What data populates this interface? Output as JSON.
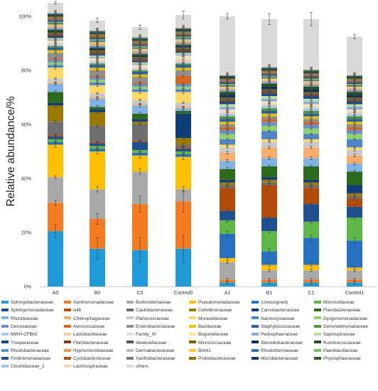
{
  "chart_data": {
    "type": "bar",
    "stacked": true,
    "ylabel": "Relative abundance/%",
    "ylim": [
      0,
      100
    ],
    "y_ticks": [
      "0%",
      "20%",
      "40%",
      "60%",
      "80%",
      "100%"
    ],
    "grid": false,
    "legend_position": "bottom",
    "categories": [
      "A0",
      "B0",
      "C0",
      "Control0",
      "A1",
      "B1",
      "C1",
      "Control1"
    ],
    "series": [
      {
        "name": "Sphingobacteriaceae",
        "color": "#1f9bd9",
        "values": [
          20.5,
          14,
          13.5,
          14,
          1.5,
          1.5,
          1.5,
          1.5
        ],
        "errors": [
          2.5,
          4,
          4.5,
          5,
          0.5,
          0.5,
          0.5,
          0.5
        ]
      },
      {
        "name": "Xanthomonadaceae",
        "color": "#f47b20",
        "values": [
          10.5,
          11,
          17,
          17.5,
          1,
          1,
          1,
          1
        ],
        "errors": [
          1,
          2,
          3,
          4,
          0.5,
          0.5,
          0.5,
          0.5
        ]
      },
      {
        "name": "Burkholderiaceae",
        "color": "#a9a9a9",
        "values": [
          9.5,
          11,
          12,
          4.5,
          6.5,
          3.5,
          3.5,
          3.5
        ],
        "errors": [
          0.5,
          1,
          1,
          1,
          0.5,
          0.5,
          0.5,
          0.5
        ]
      },
      {
        "name": "Pseudomonadaceae",
        "color": "#ffc000",
        "values": [
          12,
          14,
          6,
          12,
          1.5,
          2,
          2,
          1
        ],
        "errors": [
          1,
          1,
          1,
          1,
          0.5,
          0.5,
          0.5,
          0.5
        ]
      },
      {
        "name": "(Unassigned)",
        "color": "#2672c1",
        "values": [
          1,
          1,
          1,
          1,
          9,
          5,
          10,
          10
        ],
        "errors": [
          0.5,
          0.5,
          0.5,
          0.5,
          1,
          1,
          1,
          1
        ]
      },
      {
        "name": "Microscillaceae",
        "color": "#5eb847",
        "values": [
          1,
          1,
          1,
          1,
          5,
          7.5,
          6,
          8.5
        ],
        "errors": [
          0.5,
          0.5,
          0.5,
          0.5,
          0.5,
          0.5,
          0.5,
          0.5
        ]
      },
      {
        "name": "Sphingomonadaceae",
        "color": "#1d4f91",
        "values": [
          1,
          1,
          3,
          1,
          3.5,
          5,
          6.5,
          4
        ],
        "errors": [
          0.5,
          0.5,
          0.5,
          0.5,
          0.5,
          0.5,
          0.5,
          0.5
        ]
      },
      {
        "name": "A4b",
        "color": "#b24a08",
        "values": [
          0.5,
          0.5,
          0.5,
          0.5,
          8.5,
          12,
          6,
          3
        ],
        "errors": [
          0.3,
          0.3,
          0.3,
          0.3,
          0.5,
          0.5,
          0.5,
          0.5
        ]
      },
      {
        "name": "Caulobacteraceae",
        "color": "#6f6f6f",
        "values": [
          5,
          6,
          6,
          1,
          1,
          1,
          1,
          1
        ],
        "errors": [
          0.5,
          0.5,
          0.5,
          0.5,
          0.3,
          0.3,
          0.3,
          0.3
        ]
      },
      {
        "name": "Cellvibrionaceae",
        "color": "#9a7a00",
        "values": [
          6,
          5,
          1,
          2.5,
          1,
          1,
          1,
          1
        ],
        "errors": [
          0.5,
          0.5,
          0.5,
          0.5,
          0.3,
          0.3,
          0.3,
          0.3
        ]
      },
      {
        "name": "Carnobacteriaceae",
        "color": "#0e3e7a",
        "values": [
          1,
          1,
          1,
          9,
          1,
          1,
          1,
          3
        ],
        "errors": [
          0.5,
          0.5,
          0.5,
          0.5,
          0.3,
          0.3,
          0.3,
          0.3
        ]
      },
      {
        "name": "Flavobacteriaceae",
        "color": "#2d6b1c",
        "values": [
          4,
          1,
          2,
          1,
          4,
          4,
          5,
          5
        ],
        "errors": [
          0.5,
          0.5,
          0.5,
          0.5,
          0.5,
          0.5,
          0.5,
          0.5
        ]
      },
      {
        "name": "Rhizobiaceae",
        "color": "#7fb2e5",
        "values": [
          3,
          3,
          3,
          1,
          3,
          3,
          3,
          3
        ],
        "errors": [
          0.5,
          0.5,
          0.5,
          0.5,
          0.5,
          0.5,
          0.5,
          0.5
        ]
      },
      {
        "name": "Chitinophagaceae",
        "color": "#f8ae6b",
        "values": [
          0.5,
          0.5,
          0.5,
          0.5,
          3,
          4,
          4,
          3
        ],
        "errors": [
          0.3,
          0.3,
          0.3,
          0.3,
          0.5,
          0.5,
          0.5,
          0.5
        ]
      },
      {
        "name": "Planococcaceae",
        "color": "#c9c9c9",
        "values": [
          1.5,
          1.5,
          1.5,
          1.5,
          2,
          2,
          2,
          2
        ],
        "errors": [
          0.3,
          0.3,
          0.3,
          0.3,
          0.3,
          0.3,
          0.3,
          0.3
        ]
      },
      {
        "name": "Moraxellaceae",
        "color": "#ffd965",
        "values": [
          4,
          3,
          3,
          4,
          1,
          1,
          1,
          1
        ],
        "errors": [
          0.5,
          0.5,
          0.5,
          0.5,
          0.3,
          0.3,
          0.3,
          0.3
        ]
      },
      {
        "name": "Nannocystaceae",
        "color": "#4f86c9",
        "values": [
          1,
          1,
          1,
          1,
          2,
          3,
          2,
          3
        ],
        "errors": [
          0.3,
          0.3,
          0.3,
          0.3,
          0.3,
          0.3,
          0.3,
          0.3
        ]
      },
      {
        "name": "Dysgonomonadaceae",
        "color": "#8fd06f",
        "values": [
          1,
          1,
          1,
          1,
          2,
          2,
          2,
          2
        ],
        "errors": [
          0.3,
          0.3,
          0.3,
          0.3,
          0.3,
          0.3,
          0.3,
          0.3
        ]
      },
      {
        "name": "Devosiaceae",
        "color": "#6c8fc4",
        "values": [
          1,
          1,
          1,
          1,
          1.5,
          1.5,
          1.5,
          1.5
        ],
        "errors": [
          0.3,
          0.3,
          0.3,
          0.3,
          0.3,
          0.3,
          0.3,
          0.3
        ]
      },
      {
        "name": "Aerococcaceae",
        "color": "#d9661f",
        "values": [
          0.5,
          0.5,
          0.5,
          3,
          1,
          1,
          1,
          1
        ],
        "errors": [
          0.3,
          0.3,
          0.3,
          0.3,
          0.3,
          0.3,
          0.3,
          0.3
        ]
      },
      {
        "name": "Enterobacteriaceae",
        "color": "#8f8f8f",
        "values": [
          2,
          2,
          2,
          2,
          1,
          1,
          1,
          1
        ],
        "errors": [
          0.3,
          0.3,
          0.3,
          0.3,
          0.3,
          0.3,
          0.3,
          0.3
        ]
      },
      {
        "name": "Bacillaceae",
        "color": "#e6c300",
        "values": [
          1,
          1,
          1,
          1,
          1,
          1,
          1,
          1
        ],
        "errors": [
          0.3,
          0.3,
          0.3,
          0.3,
          0.3,
          0.3,
          0.3,
          0.3
        ]
      },
      {
        "name": "Staphylococcaceae",
        "color": "#2b5fa8",
        "values": [
          1,
          1,
          1,
          1,
          1,
          1,
          1,
          1
        ],
        "errors": [
          0.3,
          0.3,
          0.3,
          0.3,
          0.3,
          0.3,
          0.3,
          0.3
        ]
      },
      {
        "name": "Gemmatimonadaceae",
        "color": "#4a9a3a",
        "values": [
          0.5,
          0.5,
          0.5,
          0.5,
          1,
          1,
          1,
          1
        ],
        "errors": [
          0.2,
          0.2,
          0.2,
          0.2,
          0.3,
          0.3,
          0.3,
          0.3
        ]
      },
      {
        "name": "MWH-CFBk5",
        "color": "#a9c8ec",
        "values": [
          0.5,
          0.5,
          0.5,
          0.5,
          1,
          1,
          1,
          1
        ],
        "errors": [
          0.2,
          0.2,
          0.2,
          0.2,
          0.3,
          0.3,
          0.3,
          0.3
        ]
      },
      {
        "name": "Lactobacillaceae",
        "color": "#f9c9a2",
        "values": [
          0.5,
          0.5,
          0.5,
          1,
          0.5,
          0.5,
          0.5,
          0.5
        ],
        "errors": [
          0.2,
          0.2,
          0.2,
          0.2,
          0.2,
          0.2,
          0.2,
          0.2
        ]
      },
      {
        "name": "Family_XI",
        "color": "#dedede",
        "values": [
          0.5,
          0.5,
          0.5,
          1,
          0.5,
          0.5,
          0.5,
          0.5
        ],
        "errors": [
          0.2,
          0.2,
          0.2,
          0.2,
          0.2,
          0.2,
          0.2,
          0.2
        ]
      },
      {
        "name": "Bogoriellaceae",
        "color": "#ffe699",
        "values": [
          0.5,
          0.5,
          0.5,
          0.5,
          0.5,
          0.5,
          0.5,
          0.5
        ],
        "errors": [
          0.2,
          0.2,
          0.2,
          0.2,
          0.2,
          0.2,
          0.2,
          0.2
        ]
      },
      {
        "name": "Pedosphaeraceae",
        "color": "#8eaadb",
        "values": [
          0.5,
          0.5,
          0.5,
          0.5,
          1,
          1,
          1,
          1
        ],
        "errors": [
          0.2,
          0.2,
          0.2,
          0.2,
          0.3,
          0.3,
          0.3,
          0.3
        ]
      },
      {
        "name": "Saprospiraceae",
        "color": "#b7e1a1",
        "values": [
          0.5,
          0.5,
          0.5,
          0.5,
          1,
          1,
          1,
          1
        ],
        "errors": [
          0.2,
          0.2,
          0.2,
          0.2,
          0.3,
          0.3,
          0.3,
          0.3
        ]
      },
      {
        "name": "Trueperaceae",
        "color": "#17478c",
        "values": [
          0.5,
          0.5,
          0.5,
          0.5,
          1,
          1,
          1,
          1
        ],
        "errors": [
          0.2,
          0.2,
          0.2,
          0.2,
          0.3,
          0.3,
          0.3,
          0.3
        ]
      },
      {
        "name": "Fibrobacteraceae",
        "color": "#8a3a06",
        "values": [
          0.5,
          0.5,
          0.5,
          0.5,
          0.5,
          0.5,
          0.5,
          0.5
        ],
        "errors": [
          0.2,
          0.2,
          0.2,
          0.2,
          0.2,
          0.2,
          0.2,
          0.2
        ]
      },
      {
        "name": "Weeksellaceae",
        "color": "#555555",
        "values": [
          0.5,
          0.5,
          0.5,
          0.5,
          0.5,
          0.5,
          0.5,
          0.5
        ],
        "errors": [
          0.2,
          0.2,
          0.2,
          0.2,
          0.2,
          0.2,
          0.2,
          0.2
        ]
      },
      {
        "name": "Micrococcaceae",
        "color": "#7a6300",
        "values": [
          0.5,
          0.5,
          0.5,
          0.5,
          0.5,
          0.5,
          0.5,
          0.5
        ],
        "errors": [
          0.2,
          0.2,
          0.2,
          0.2,
          0.2,
          0.2,
          0.2,
          0.2
        ]
      },
      {
        "name": "Steroidobacteraceae",
        "color": "#0b2f5e",
        "values": [
          0.5,
          0.5,
          0.5,
          0.5,
          1,
          1,
          1,
          1
        ],
        "errors": [
          0.2,
          0.2,
          0.2,
          0.2,
          0.3,
          0.3,
          0.3,
          0.3
        ]
      },
      {
        "name": "Ruminococcaceae",
        "color": "#23531a",
        "values": [
          0.5,
          0.5,
          0.5,
          0.5,
          1,
          1,
          1,
          1
        ],
        "errors": [
          0.2,
          0.2,
          0.2,
          0.2,
          0.3,
          0.3,
          0.3,
          0.3
        ]
      },
      {
        "name": "Rhodobacteraceae",
        "color": "#5a96d6",
        "values": [
          0.5,
          0.5,
          0.5,
          0.5,
          0.5,
          0.5,
          0.5,
          0.5
        ],
        "errors": [
          0.2,
          0.2,
          0.2,
          0.2,
          0.2,
          0.2,
          0.2,
          0.2
        ]
      },
      {
        "name": "Hyphomicrobiaceae",
        "color": "#f29a55",
        "values": [
          0.5,
          0.5,
          0.5,
          0.5,
          0.5,
          0.5,
          0.5,
          0.5
        ],
        "errors": [
          0.2,
          0.2,
          0.2,
          0.2,
          0.2,
          0.2,
          0.2,
          0.2
        ]
      },
      {
        "name": "Dermabacteraceae",
        "color": "#bdbdbd",
        "values": [
          0.5,
          0.5,
          0.5,
          0.5,
          0.5,
          0.5,
          0.5,
          0.5
        ],
        "errors": [
          0.2,
          0.2,
          0.2,
          0.2,
          0.2,
          0.2,
          0.2,
          0.2
        ]
      },
      {
        "name": "Blrii41",
        "color": "#ffcd33",
        "values": [
          0.5,
          0.5,
          0.5,
          0.5,
          0.5,
          0.5,
          0.5,
          0.5
        ],
        "errors": [
          0.2,
          0.2,
          0.2,
          0.2,
          0.2,
          0.2,
          0.2,
          0.2
        ]
      },
      {
        "name": "Rhodothermaceae",
        "color": "#3a6fb8",
        "values": [
          0.5,
          0.5,
          0.5,
          0.5,
          0.5,
          0.5,
          0.5,
          0.5
        ],
        "errors": [
          0.2,
          0.2,
          0.2,
          0.2,
          0.2,
          0.2,
          0.2,
          0.2
        ]
      },
      {
        "name": "Paenibacillaceae",
        "color": "#7bbf5a",
        "values": [
          0.5,
          0.5,
          0.5,
          0.5,
          0.5,
          0.5,
          0.5,
          0.5
        ],
        "errors": [
          0.2,
          0.2,
          0.2,
          0.2,
          0.2,
          0.2,
          0.2,
          0.2
        ]
      },
      {
        "name": "Fimbriimonadaceae",
        "color": "#264f8a",
        "values": [
          0.5,
          0.5,
          0.5,
          0.5,
          0.5,
          0.5,
          0.5,
          0.5
        ],
        "errors": [
          0.2,
          0.2,
          0.2,
          0.2,
          0.2,
          0.2,
          0.2,
          0.2
        ]
      },
      {
        "name": "Cyclobacteriaceae",
        "color": "#a85214",
        "values": [
          0.5,
          0.5,
          0.5,
          0.5,
          0.5,
          0.5,
          0.5,
          0.5
        ],
        "errors": [
          0.2,
          0.2,
          0.2,
          0.2,
          0.2,
          0.2,
          0.2,
          0.2
        ]
      },
      {
        "name": "Xanthobacteraceae",
        "color": "#7a7a7a",
        "values": [
          0.5,
          0.5,
          0.5,
          0.5,
          0.5,
          0.5,
          0.5,
          0.5
        ],
        "errors": [
          0.2,
          0.2,
          0.2,
          0.2,
          0.2,
          0.2,
          0.2,
          0.2
        ]
      },
      {
        "name": "Prolixibacteraceae",
        "color": "#8c7000",
        "values": [
          0.5,
          0.5,
          0.5,
          0.5,
          0.5,
          0.5,
          0.5,
          0.5
        ],
        "errors": [
          0.2,
          0.2,
          0.2,
          0.2,
          0.2,
          0.2,
          0.2,
          0.2
        ]
      },
      {
        "name": "Microbacteriaceae",
        "color": "#0f3a70",
        "values": [
          0.5,
          0.5,
          0.5,
          0.5,
          0.5,
          0.5,
          0.5,
          0.5
        ],
        "errors": [
          0.2,
          0.2,
          0.2,
          0.2,
          0.2,
          0.2,
          0.2,
          0.2
        ]
      },
      {
        "name": "Phycisphaeraceae",
        "color": "#2f5e22",
        "values": [
          0.5,
          0.5,
          0.5,
          0.5,
          0.5,
          0.5,
          0.5,
          0.5
        ],
        "errors": [
          0.2,
          0.2,
          0.2,
          0.2,
          0.2,
          0.2,
          0.2,
          0.2
        ]
      },
      {
        "name": "Clostridiaceae_2",
        "color": "#9ec5ea",
        "values": [
          0.5,
          0.5,
          0.5,
          0.5,
          0.5,
          0.5,
          0.5,
          0.5
        ],
        "errors": [
          0.2,
          0.2,
          0.2,
          0.2,
          0.2,
          0.2,
          0.2,
          0.2
        ]
      },
      {
        "name": "Lachnospiraceae",
        "color": "#fad6b5",
        "values": [
          0.5,
          0.5,
          0.5,
          0.5,
          0.5,
          0.5,
          0.5,
          0.5
        ],
        "errors": [
          0.2,
          0.2,
          0.2,
          0.2,
          0.2,
          0.2,
          0.2,
          0.2
        ]
      },
      {
        "name": "others",
        "color": "#d9d9d9",
        "values": [
          3,
          3,
          3,
          4,
          21,
          17,
          18,
          13.5
        ],
        "errors": [
          0.5,
          0.8,
          0.8,
          1.5,
          1,
          2,
          2.5,
          0.8
        ]
      }
    ]
  }
}
